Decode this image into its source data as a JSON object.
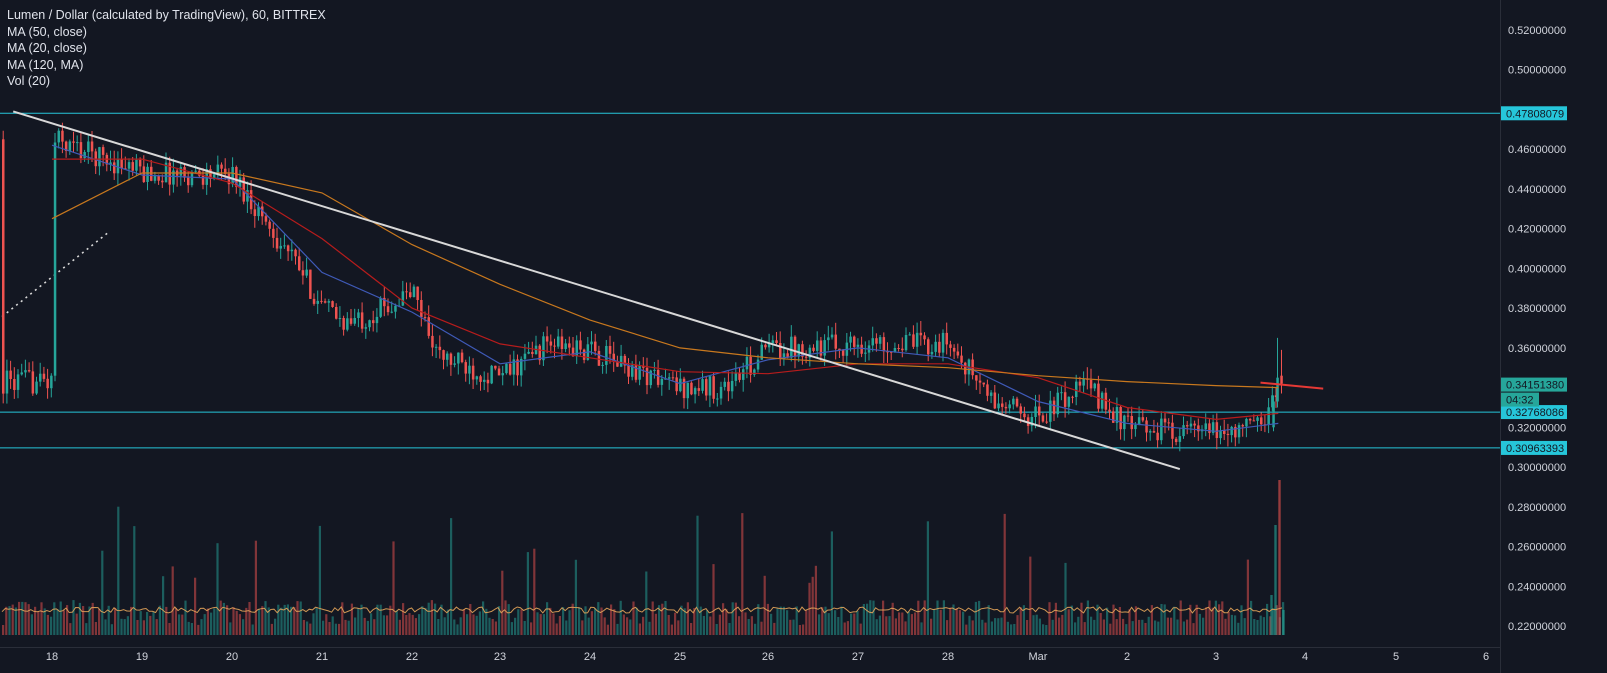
{
  "header": {
    "title": "Lumen / Dollar (calculated by TradingView), 60, BITTREX",
    "indicators": [
      "MA (50, close)",
      "MA (20, close)",
      "MA (120, MA)",
      "Vol (20)"
    ]
  },
  "colors": {
    "background": "#131722",
    "up": "#26a69a",
    "down": "#ef5350",
    "ma20": "#3f5ab8",
    "ma50": "#b71c1c",
    "ma120": "#c8781e",
    "horizontal_lines": "#26c6da",
    "trendline": "#d8d8d8",
    "red_ray": "#e53935"
  },
  "chart_data": {
    "type": "candlestick",
    "title": "Lumen / Dollar (calculated by TradingView), 60, BITTREX",
    "x_axis": {
      "type": "date",
      "tick_labels": [
        "18",
        "19",
        "20",
        "21",
        "22",
        "23",
        "24",
        "25",
        "26",
        "27",
        "28",
        "Mar",
        "2",
        "3",
        "4",
        "5",
        "6"
      ]
    },
    "y_axis": {
      "position": "right",
      "range": [
        0.21,
        0.525
      ],
      "tick_labels": [
        "0.52000000",
        "0.50000000",
        "0.46000000",
        "0.44000000",
        "0.42000000",
        "0.40000000",
        "0.38000000",
        "0.36000000",
        "0.32000000",
        "0.30000000",
        "0.28000000",
        "0.26000000",
        "0.24000000",
        "0.22000000"
      ]
    },
    "horizontal_levels": [
      {
        "value": 0.47808079,
        "label": "0.47808079"
      },
      {
        "value": 0.32768086,
        "label": "0.32768086"
      },
      {
        "value": 0.30963393,
        "label": "0.30963393"
      }
    ],
    "last_price": {
      "value": 0.3415138,
      "label": "0.34151380",
      "countdown": "04:32"
    },
    "candles_key_points": {
      "x": [
        "18",
        "19",
        "20",
        "20.7",
        "21",
        "21.3",
        "22",
        "22.3",
        "23",
        "23.5",
        "24",
        "25",
        "25.5",
        "26",
        "27",
        "28",
        "28.5",
        "Mar",
        "Mar.5",
        "2",
        "3",
        "3.5",
        "3.7"
      ],
      "y": [
        0.465,
        0.448,
        0.447,
        0.402,
        0.38,
        0.372,
        0.388,
        0.355,
        0.345,
        0.362,
        0.358,
        0.34,
        0.34,
        0.36,
        0.362,
        0.362,
        0.332,
        0.325,
        0.342,
        0.32,
        0.317,
        0.322,
        0.343
      ]
    },
    "moving_averages": [
      {
        "name": "MA (20, close)",
        "x": [
          "18",
          "19",
          "20",
          "21",
          "22",
          "23",
          "24",
          "25",
          "26",
          "27",
          "28",
          "Mar",
          "2",
          "3",
          "3.7"
        ],
        "y": [
          0.462,
          0.447,
          0.445,
          0.398,
          0.378,
          0.352,
          0.358,
          0.342,
          0.354,
          0.36,
          0.355,
          0.333,
          0.322,
          0.318,
          0.322
        ]
      },
      {
        "name": "MA (50, close)",
        "x": [
          "18",
          "19",
          "20",
          "21",
          "22",
          "23",
          "24",
          "25",
          "26",
          "27",
          "28",
          "Mar",
          "2",
          "3",
          "3.7"
        ],
        "y": [
          0.455,
          0.455,
          0.443,
          0.415,
          0.38,
          0.362,
          0.355,
          0.348,
          0.347,
          0.352,
          0.352,
          0.345,
          0.33,
          0.324,
          0.327
        ]
      },
      {
        "name": "MA (120, MA)",
        "x": [
          "18",
          "19",
          "20",
          "21",
          "22",
          "23",
          "24",
          "25",
          "26",
          "27",
          "28",
          "Mar",
          "2",
          "3",
          "3.7"
        ],
        "y": [
          0.425,
          0.448,
          0.448,
          0.438,
          0.412,
          0.392,
          0.374,
          0.36,
          0.355,
          0.352,
          0.35,
          0.346,
          0.343,
          0.341,
          0.34
        ]
      }
    ],
    "trendlines": [
      {
        "kind": "descending",
        "from": [
          "17.6",
          0.479
        ],
        "to": [
          "6.2",
          0.299
        ]
      },
      {
        "kind": "dotted ascending",
        "from": [
          "17",
          0.357
        ],
        "to": [
          "6.9",
          0.418
        ]
      }
    ],
    "volume": {
      "series": "Vol (20)",
      "spike_near": [
        "3.7"
      ],
      "note_values_relative": [
        0.6,
        0.9,
        1.0
      ]
    },
    "grid": false,
    "legend_position": "top-left"
  }
}
